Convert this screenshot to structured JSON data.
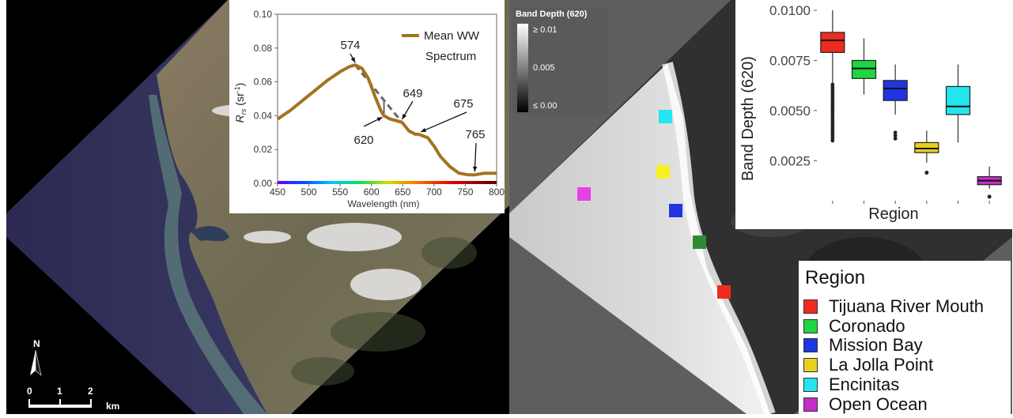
{
  "north_label": "N",
  "scale": {
    "ticks": [
      "0",
      "1",
      "2"
    ],
    "unit": "km"
  },
  "band_depth_legend": {
    "title": "Band Depth (620)",
    "max": "≥ 0.01",
    "mid": "0.005",
    "min": "≤ 0.00"
  },
  "region_legend": {
    "title": "Region",
    "items": [
      {
        "label": "Tijuana River Mouth",
        "color": "#ef2b1f"
      },
      {
        "label": "Coronado",
        "color": "#1fd640"
      },
      {
        "label": "Mission Bay",
        "color": "#1f35e0"
      },
      {
        "label": "La Jolla Point",
        "color": "#e9d020"
      },
      {
        "label": "Encinitas",
        "color": "#22e6ee"
      },
      {
        "label": "Open Ocean",
        "color": "#c22fc8"
      }
    ]
  },
  "map_markers": [
    {
      "region": "Encinitas",
      "color": "#22e6ee"
    },
    {
      "region": "La Jolla Point",
      "color": "#f7f21f"
    },
    {
      "region": "Open Ocean",
      "color": "#e640e6"
    },
    {
      "region": "Mission Bay",
      "color": "#1f35e0"
    },
    {
      "region": "Coronado",
      "color": "#2f8a36"
    },
    {
      "region": "Tijuana River Mouth",
      "color": "#ef2b1f"
    }
  ],
  "chart_data": [
    {
      "type": "line",
      "xlabel": "Wavelength (nm)",
      "ylabel": "R_rs (sr^-1)",
      "ylabel_main": "R",
      "ylabel_sub": "rs",
      "ylabel_unit_prefix": "(sr",
      "ylabel_unit_sup": "-1",
      "ylabel_unit_suffix": ")",
      "xlim": [
        450,
        800
      ],
      "ylim": [
        0,
        0.1
      ],
      "xticks": [
        "450",
        "500",
        "550",
        "600",
        "650",
        "700",
        "750",
        "800"
      ],
      "yticks": [
        "0.00",
        "0.02",
        "0.04",
        "0.06",
        "0.08",
        "0.10"
      ],
      "legend_position": "top-right",
      "series": [
        {
          "name": "Mean WW Spectrum",
          "legend_line1": "Mean WW",
          "legend_line2": "Spectrum",
          "color": "#a4721e",
          "x": [
            450,
            470,
            490,
            510,
            530,
            550,
            565,
            574,
            585,
            595,
            605,
            615,
            620,
            630,
            640,
            649,
            660,
            670,
            675,
            690,
            700,
            710,
            725,
            740,
            755,
            765,
            780,
            800
          ],
          "y": [
            0.038,
            0.043,
            0.049,
            0.055,
            0.061,
            0.066,
            0.069,
            0.07,
            0.068,
            0.062,
            0.052,
            0.043,
            0.04,
            0.038,
            0.037,
            0.036,
            0.031,
            0.029,
            0.029,
            0.027,
            0.022,
            0.016,
            0.01,
            0.006,
            0.005,
            0.005,
            0.006,
            0.006
          ]
        }
      ],
      "annotations": [
        {
          "label": "574",
          "x": 574
        },
        {
          "label": "620",
          "x": 620
        },
        {
          "label": "649",
          "x": 649
        },
        {
          "label": "675",
          "x": 675
        },
        {
          "label": "765",
          "x": 765
        }
      ]
    },
    {
      "type": "box",
      "ylabel": "Band Depth (620)",
      "xlabel": "Region",
      "ylim": [
        0.0005,
        0.0102
      ],
      "yticks": [
        "0.0025",
        "0.0050",
        "0.0075",
        "0.0100"
      ],
      "ytick_values": [
        0.0025,
        0.005,
        0.0075,
        0.01
      ],
      "boxes": [
        {
          "region": "Tijuana River Mouth",
          "color": "#ef2b1f",
          "min": 0.0064,
          "q1": 0.0079,
          "median": 0.0085,
          "q3": 0.0089,
          "max": 0.01,
          "outliers_low": [
            0.0035,
            0.0063
          ]
        },
        {
          "region": "Coronado",
          "color": "#1fd640",
          "min": 0.0058,
          "q1": 0.0066,
          "median": 0.0071,
          "q3": 0.0075,
          "max": 0.0086
        },
        {
          "region": "Mission Bay",
          "color": "#1f35e0",
          "min": 0.0048,
          "q1": 0.0055,
          "median": 0.0061,
          "q3": 0.0065,
          "max": 0.0073,
          "outliers_low": [
            0.0036,
            0.0039
          ]
        },
        {
          "region": "La Jolla Point",
          "color": "#e9d020",
          "min": 0.0024,
          "q1": 0.0029,
          "median": 0.0031,
          "q3": 0.0034,
          "max": 0.004,
          "outliers_low": [
            0.0019
          ]
        },
        {
          "region": "Encinitas",
          "color": "#22e6ee",
          "min": 0.0034,
          "q1": 0.0048,
          "median": 0.0052,
          "q3": 0.0062,
          "max": 0.0073
        },
        {
          "region": "Open Ocean",
          "color": "#c22fc8",
          "min": 0.0011,
          "q1": 0.0013,
          "median": 0.0015,
          "q3": 0.0017,
          "max": 0.0022,
          "outliers_low": [
            0.0007
          ]
        }
      ]
    }
  ]
}
